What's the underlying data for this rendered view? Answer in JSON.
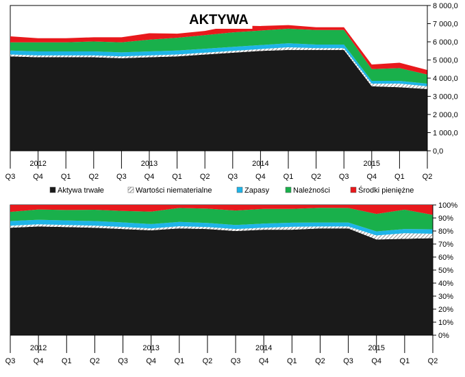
{
  "chart_data": [
    {
      "type": "area",
      "stacked": true,
      "title": "AKTYWA",
      "categories": [
        "Q3",
        "Q4",
        "Q1",
        "Q2",
        "Q3",
        "Q4",
        "Q1",
        "Q2",
        "Q3",
        "Q4",
        "Q1",
        "Q2",
        "Q3",
        "Q4",
        "Q1",
        "Q2"
      ],
      "years": [
        {
          "label": "2012",
          "at_index": 1
        },
        {
          "label": "2013",
          "at_index": 5
        },
        {
          "label": "2014",
          "at_index": 9
        },
        {
          "label": "2015",
          "at_index": 13
        }
      ],
      "y_ticks": [
        "0,0",
        "1 000,0",
        "2 000,0",
        "3 000,0",
        "4 000,0",
        "5 000,0",
        "6 000,0",
        "7 000,0",
        "8 000,0"
      ],
      "ylim": [
        0,
        8000
      ],
      "y_axis_side": "right",
      "grid": false,
      "series": [
        {
          "name": "Aktywa trwałe",
          "color": "#1a1a1a",
          "values": [
            5200,
            5150,
            5150,
            5150,
            5100,
            5150,
            5200,
            5300,
            5400,
            5500,
            5550,
            5550,
            5550,
            3550,
            3500,
            3400
          ]
        },
        {
          "name": "Wartości niematerialne",
          "color": "#bfbfbf",
          "values": [
            100,
            100,
            100,
            100,
            100,
            100,
            100,
            100,
            100,
            100,
            150,
            100,
            100,
            150,
            200,
            150
          ]
        },
        {
          "name": "Zapasy",
          "color": "#1fb4e8",
          "values": [
            220,
            220,
            220,
            220,
            220,
            220,
            220,
            220,
            220,
            220,
            220,
            200,
            200,
            150,
            150,
            150
          ]
        },
        {
          "name": "Należności",
          "color": "#19b04b",
          "values": [
            450,
            500,
            500,
            550,
            550,
            650,
            700,
            750,
            800,
            800,
            800,
            800,
            800,
            650,
            700,
            500
          ]
        },
        {
          "name": "Środki pieniężne",
          "color": "#e8191c",
          "values": [
            330,
            230,
            230,
            230,
            280,
            350,
            230,
            230,
            380,
            250,
            200,
            150,
            150,
            250,
            300,
            250
          ]
        }
      ]
    },
    {
      "type": "area",
      "stacked_percent": true,
      "categories": [
        "Q3",
        "Q4",
        "Q1",
        "Q2",
        "Q3",
        "Q4",
        "Q1",
        "Q2",
        "Q3",
        "Q4",
        "Q1",
        "Q2",
        "Q3",
        "Q4",
        "Q1",
        "Q2"
      ],
      "years": [
        {
          "label": "2012",
          "at_index": 1
        },
        {
          "label": "2013",
          "at_index": 5
        },
        {
          "label": "2014",
          "at_index": 9
        },
        {
          "label": "2015",
          "at_index": 13
        }
      ],
      "y_ticks": [
        "0%",
        "10%",
        "20%",
        "30%",
        "40%",
        "50%",
        "60%",
        "70%",
        "80%",
        "90%",
        "100%"
      ],
      "ylim": [
        0,
        100
      ],
      "y_axis_side": "right",
      "grid": false,
      "series": [
        {
          "name": "Aktywa trwałe",
          "color": "#1a1a1a",
          "values": [
            82.5,
            83.5,
            83,
            82.5,
            81.5,
            80.5,
            82,
            81.5,
            80,
            81,
            81,
            82,
            82,
            73.5,
            74,
            74.5
          ]
        },
        {
          "name": "Wartości niematerialne",
          "color": "#bfbfbf",
          "values": [
            1.6,
            1.6,
            1.6,
            1.6,
            1.6,
            1.5,
            1.6,
            1.5,
            1.5,
            1.5,
            2.2,
            1.5,
            1.5,
            3.1,
            4.3,
            3.4
          ]
        },
        {
          "name": "Zapasy",
          "color": "#1fb4e8",
          "values": [
            3.5,
            3.5,
            3.5,
            3.5,
            3.5,
            3.3,
            3.4,
            3.2,
            3.1,
            3.2,
            3.2,
            3,
            3,
            3.1,
            3.2,
            3.4
          ]
        },
        {
          "name": "Należności",
          "color": "#19b04b",
          "values": [
            7.1,
            7.9,
            8,
            8.7,
            8.8,
            9.6,
            10.7,
            11,
            11.1,
            11.3,
            10.6,
            11.3,
            11.2,
            13.4,
            14.9,
            11.1
          ]
        },
        {
          "name": "Środki pieniężne",
          "color": "#e8191c",
          "values": [
            5.3,
            3.5,
            3.9,
            3.7,
            4.6,
            5.1,
            2.3,
            2.8,
            4.3,
            3,
            3,
            2.2,
            2.3,
            6.9,
            3.6,
            7.6
          ]
        }
      ]
    }
  ]
}
